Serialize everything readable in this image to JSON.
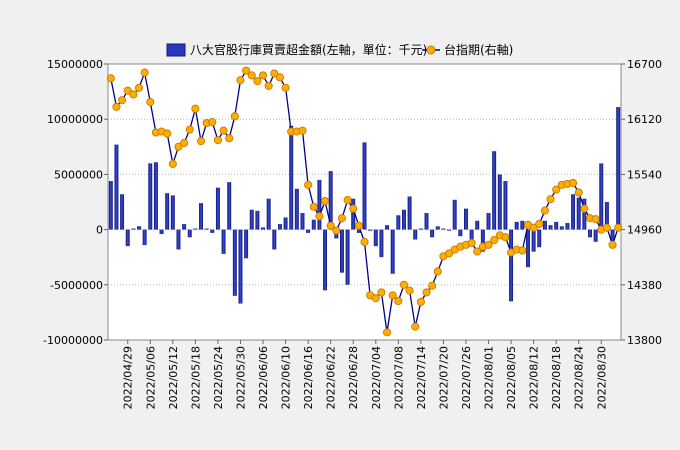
{
  "chart_data": {
    "type": "bar+line",
    "legend": [
      {
        "name": "八大官股行庫買賣超金額(左軸，單位：千元)",
        "kind": "bar",
        "color": "#2a36b8"
      },
      {
        "name": "台指期(右軸)",
        "kind": "line",
        "color": "#f5a800"
      }
    ],
    "left_axis": {
      "range": [
        -10000000,
        15000000
      ],
      "ticks": [
        15000000,
        10000000,
        5000000,
        0,
        -5000000,
        -10000000
      ],
      "tick_labels": [
        "15000000",
        "10000000",
        "5000000",
        "0",
        "-5000000",
        "-10000000"
      ]
    },
    "right_axis": {
      "range": [
        13800,
        16700
      ],
      "ticks": [
        16700,
        16120,
        15540,
        14960,
        14380,
        13800
      ],
      "tick_labels": [
        "16700",
        "16120",
        "15540",
        "14960",
        "14380",
        "13800"
      ]
    },
    "x_tick_labels": [
      "2022/04/29",
      "2022/05/06",
      "2022/05/12",
      "2022/05/18",
      "2022/05/24",
      "2022/05/30",
      "2022/06/06",
      "2022/06/10",
      "2022/06/16",
      "2022/06/22",
      "2022/06/28",
      "2022/07/04",
      "2022/07/08",
      "2022/07/14",
      "2022/07/20",
      "2022/07/26",
      "2022/08/01",
      "2022/08/05",
      "2022/08/12",
      "2022/08/18",
      "2022/08/24",
      "2022/08/30"
    ],
    "x_tick_indices": [
      3,
      7,
      11,
      15,
      19,
      23,
      27,
      31,
      35,
      39,
      43,
      47,
      51,
      55,
      59,
      63,
      67,
      71,
      75,
      79,
      83,
      87
    ],
    "bar_values": [
      4400000,
      7700000,
      3200000,
      -1500000,
      100000,
      300000,
      -1400000,
      6000000,
      6100000,
      -400000,
      3300000,
      3100000,
      -1800000,
      500000,
      -700000,
      100000,
      2400000,
      100000,
      -300000,
      3800000,
      -2200000,
      4300000,
      -6000000,
      -6700000,
      -2600000,
      1800000,
      1700000,
      200000,
      2800000,
      -1800000,
      500000,
      1100000,
      9400000,
      3700000,
      1500000,
      -300000,
      900000,
      4500000,
      -5500000,
      5300000,
      -800000,
      -3900000,
      -5000000,
      2800000,
      -300000,
      7900000,
      -100000,
      -1500000,
      -2500000,
      400000,
      -4000000,
      1300000,
      1800000,
      3000000,
      -900000,
      100000,
      1500000,
      -700000,
      300000,
      100000,
      -100000,
      2700000,
      -600000,
      1900000,
      -1200000,
      800000,
      -2000000,
      1500000,
      7100000,
      5000000,
      4400000,
      -6500000,
      700000,
      800000,
      -3400000,
      -2000000,
      -1600000,
      800000,
      400000,
      700000,
      300000,
      600000,
      3200000,
      2900000,
      2800000,
      -700000,
      -1100000,
      6000000,
      2500000,
      -1500000,
      11100000
    ],
    "line_values": [
      16550,
      16250,
      16320,
      16420,
      16380,
      16450,
      16610,
      16300,
      15980,
      15990,
      15970,
      15650,
      15830,
      15870,
      16010,
      16230,
      15890,
      16080,
      16090,
      15900,
      16000,
      15920,
      16150,
      16530,
      16630,
      16580,
      16520,
      16580,
      16470,
      16600,
      16560,
      16450,
      15990,
      15990,
      16000,
      15430,
      15200,
      15100,
      15260,
      15000,
      14950,
      15080,
      15270,
      15180,
      15000,
      14830,
      14270,
      14240,
      14300,
      13880,
      14270,
      14210,
      14380,
      14320,
      13940,
      14200,
      14300,
      14370,
      14520,
      14680,
      14710,
      14750,
      14780,
      14800,
      14820,
      14730,
      14780,
      14800,
      14850,
      14900,
      14880,
      14720,
      14750,
      14740,
      15010,
      14980,
      15020,
      15160,
      15280,
      15380,
      15430,
      15440,
      15450,
      15350,
      15180,
      15080,
      15070,
      14960,
      14980,
      14800,
      14980
    ]
  }
}
